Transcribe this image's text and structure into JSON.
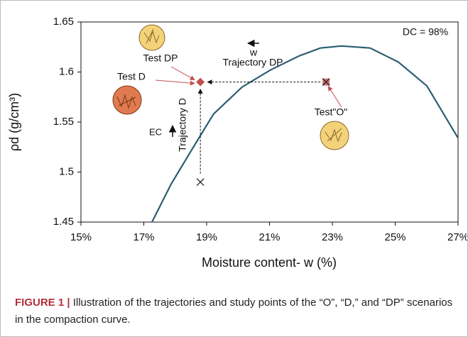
{
  "chart_data": {
    "type": "line",
    "xlabel": "Moisture content- w (%)",
    "ylabel": "ρd (g/cm³)",
    "xlim": [
      15,
      27
    ],
    "ylim": [
      1.45,
      1.65
    ],
    "xticks": [
      {
        "value": 15,
        "label": "15%"
      },
      {
        "value": 17,
        "label": "17%"
      },
      {
        "value": 19,
        "label": "19%"
      },
      {
        "value": 21,
        "label": "21%"
      },
      {
        "value": 23,
        "label": "23%"
      },
      {
        "value": 25,
        "label": "25%"
      },
      {
        "value": 27,
        "label": "27%"
      }
    ],
    "yticks": [
      1.45,
      1.5,
      1.55,
      1.6,
      1.65
    ],
    "series": [
      {
        "color": "#2b5d73",
        "x": [
          17.26,
          17.87,
          18.5,
          19.22,
          20.13,
          21.03,
          21.94,
          22.62,
          23.29,
          24.2,
          25.1,
          26.01,
          27.0
        ],
        "values": [
          1.45,
          1.488,
          1.521,
          1.558,
          1.585,
          1.602,
          1.616,
          1.624,
          1.626,
          1.624,
          1.61,
          1.586,
          1.534
        ]
      }
    ],
    "points": [
      {
        "x": 18.8,
        "y": 1.59,
        "marker": "diamond",
        "color": "#c0504d"
      },
      {
        "x": 22.8,
        "y": 1.59,
        "marker": "x-box",
        "color": "#c0504d"
      },
      {
        "x": 18.8,
        "y": 1.49,
        "marker": "x",
        "color": "#222222"
      }
    ],
    "annotations": [
      "DC = 98%",
      "Test DP",
      "Test D",
      "Test\"O\"",
      "Trajectory DP",
      "Trajectory D",
      "EC",
      "w"
    ]
  },
  "caption": {
    "label": "FIGURE 1 |",
    "text": "Illustration of the trajectories and study points of the “O”, “D,” and “DP” scenarios in the compaction curve."
  }
}
